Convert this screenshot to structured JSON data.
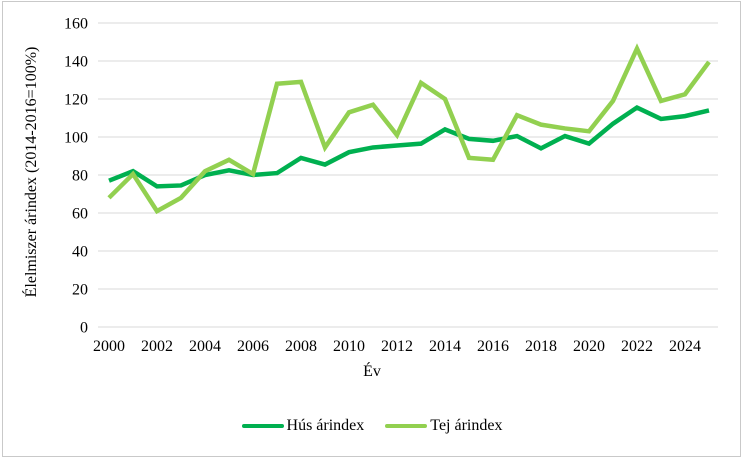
{
  "chart_data": {
    "type": "line",
    "title": "",
    "xlabel": "Év",
    "ylabel": "Élelmiszer árindex (2014-2016=100%)",
    "x": [
      2000,
      2001,
      2002,
      2003,
      2004,
      2005,
      2006,
      2007,
      2008,
      2009,
      2010,
      2011,
      2012,
      2013,
      2014,
      2015,
      2016,
      2017,
      2018,
      2019,
      2020,
      2021,
      2022,
      2023,
      2024,
      2025
    ],
    "series": [
      {
        "name": "Hús árindex",
        "color": "#00B050",
        "values": [
          77,
          82,
          74,
          74.5,
          80,
          82.5,
          80,
          81,
          89,
          85.5,
          92,
          94.5,
          95.5,
          96.5,
          104,
          99,
          98,
          100.5,
          94,
          100.5,
          96.5,
          107,
          115.5,
          109.5,
          111,
          114
        ]
      },
      {
        "name": "Tej árindex",
        "color": "#92D050",
        "values": [
          68,
          80.5,
          61,
          68,
          82,
          88,
          80.5,
          128,
          129,
          94.5,
          113,
          117,
          101,
          128.5,
          120,
          89,
          88,
          111.5,
          106.5,
          104.5,
          103,
          119,
          146.5,
          119,
          122.5,
          139.5
        ]
      }
    ],
    "ylim": [
      0,
      160
    ],
    "y_ticks": [
      0,
      20,
      40,
      60,
      80,
      100,
      120,
      140,
      160
    ],
    "x_ticks": [
      2000,
      2002,
      2004,
      2006,
      2008,
      2010,
      2012,
      2014,
      2016,
      2018,
      2020,
      2022,
      2024
    ],
    "grid": "horizontal",
    "gridline_color": "#D9D9D9",
    "legend_position": "bottom"
  }
}
